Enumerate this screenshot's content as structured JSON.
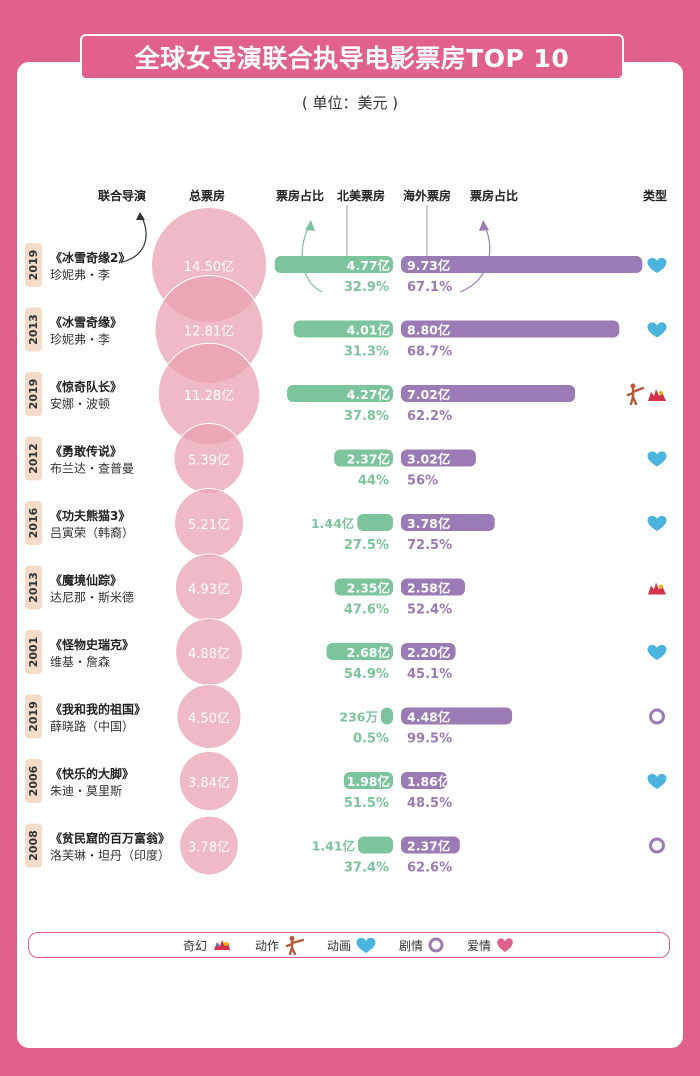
{
  "header": {
    "title": "全球女导演联合执导电影票房TOP 10",
    "unit": "( 单位：美元 )"
  },
  "columns": {
    "director": "联合导演",
    "total": "总票房",
    "share_na": "票房占比",
    "north_america": "北美票房",
    "overseas": "海外票房",
    "share_os": "票房占比",
    "genre": "类型"
  },
  "legend": [
    {
      "label": "奇幻",
      "icon": "dragon-icon"
    },
    {
      "label": "动作",
      "icon": "kick-icon"
    },
    {
      "label": "动画",
      "icon": "heart-icon"
    },
    {
      "label": "剧情",
      "icon": "ring-icon"
    },
    {
      "label": "爱情",
      "icon": "love-heart-icon"
    }
  ],
  "colors": {
    "brand": "#e2608c",
    "bubble": "#e9a0ae",
    "north_america": "#7cc49b",
    "overseas": "#9b7bb5",
    "year_tag": "#f4dcc8",
    "animation": "#4ab4de",
    "drama": "#9b7bb5",
    "romance": "#e2608c"
  },
  "chart_data": {
    "type": "table",
    "title": "全球女导演联合执导电影票房TOP 10",
    "unit": "美元",
    "rows": [
      {
        "year": "2019",
        "film": "《冰雪奇缘2》",
        "director": "珍妮弗・李",
        "total": 14.5,
        "total_label": "14.50亿",
        "north_america": 4.77,
        "na_label": "4.77亿",
        "na_share": "32.9%",
        "overseas": 9.73,
        "os_label": "9.73亿",
        "os_share": "67.1%",
        "genres": [
          "animation"
        ]
      },
      {
        "year": "2013",
        "film": "《冰雪奇缘》",
        "director": "珍妮弗・李",
        "total": 12.81,
        "total_label": "12.81亿",
        "north_america": 4.01,
        "na_label": "4.01亿",
        "na_share": "31.3%",
        "overseas": 8.8,
        "os_label": "8.80亿",
        "os_share": "68.7%",
        "genres": [
          "animation"
        ]
      },
      {
        "year": "2019",
        "film": "《惊奇队长》",
        "director": "安娜・波顿",
        "total": 11.28,
        "total_label": "11.28亿",
        "north_america": 4.27,
        "na_label": "4.27亿",
        "na_share": "37.8%",
        "overseas": 7.02,
        "os_label": "7.02亿",
        "os_share": "62.2%",
        "genres": [
          "action",
          "fantasy"
        ]
      },
      {
        "year": "2012",
        "film": "《勇敢传说》",
        "director": "布兰达・查普曼",
        "total": 5.39,
        "total_label": "5.39亿",
        "north_america": 2.37,
        "na_label": "2.37亿",
        "na_share": "44%",
        "overseas": 3.02,
        "os_label": "3.02亿",
        "os_share": "56%",
        "genres": [
          "animation"
        ]
      },
      {
        "year": "2016",
        "film": "《功夫熊猫3》",
        "director": "吕寅荣（韩裔）",
        "total": 5.21,
        "total_label": "5.21亿",
        "north_america": 1.44,
        "na_label": "1.44亿",
        "na_share": "27.5%",
        "overseas": 3.78,
        "os_label": "3.78亿",
        "os_share": "72.5%",
        "genres": [
          "animation"
        ]
      },
      {
        "year": "2013",
        "film": "《魔境仙踪》",
        "director": "达尼那・斯米德",
        "total": 4.93,
        "total_label": "4.93亿",
        "north_america": 2.35,
        "na_label": "2.35亿",
        "na_share": "47.6%",
        "overseas": 2.58,
        "os_label": "2.58亿",
        "os_share": "52.4%",
        "genres": [
          "fantasy"
        ]
      },
      {
        "year": "2001",
        "film": "《怪物史瑞克》",
        "director": "维基・詹森",
        "total": 4.88,
        "total_label": "4.88亿",
        "north_america": 2.68,
        "na_label": "2.68亿",
        "na_share": "54.9%",
        "overseas": 2.2,
        "os_label": "2.20亿",
        "os_share": "45.1%",
        "genres": [
          "animation"
        ]
      },
      {
        "year": "2019",
        "film": "《我和我的祖国》",
        "director": "薛晓路（中国）",
        "total": 4.5,
        "total_label": "4.50亿",
        "north_america": 0.0236,
        "na_label": "236万",
        "na_share": "0.5%",
        "overseas": 4.48,
        "os_label": "4.48亿",
        "os_share": "99.5%",
        "genres": [
          "drama"
        ]
      },
      {
        "year": "2006",
        "film": "《快乐的大脚》",
        "director": "朱迪・莫里斯",
        "total": 3.84,
        "total_label": "3.84亿",
        "north_america": 1.98,
        "na_label": "1.98亿",
        "na_share": "51.5%",
        "overseas": 1.86,
        "os_label": "1.86亿",
        "os_share": "48.5%",
        "genres": [
          "animation"
        ]
      },
      {
        "year": "2008",
        "film": "《贫民窟的百万富翁》",
        "director": "洛芙琳・坦丹（印度）",
        "total": 3.78,
        "total_label": "3.78亿",
        "north_america": 1.41,
        "na_label": "1.41亿",
        "na_share": "37.4%",
        "overseas": 2.37,
        "os_label": "2.37亿",
        "os_share": "62.6%",
        "genres": [
          "drama"
        ]
      }
    ]
  }
}
